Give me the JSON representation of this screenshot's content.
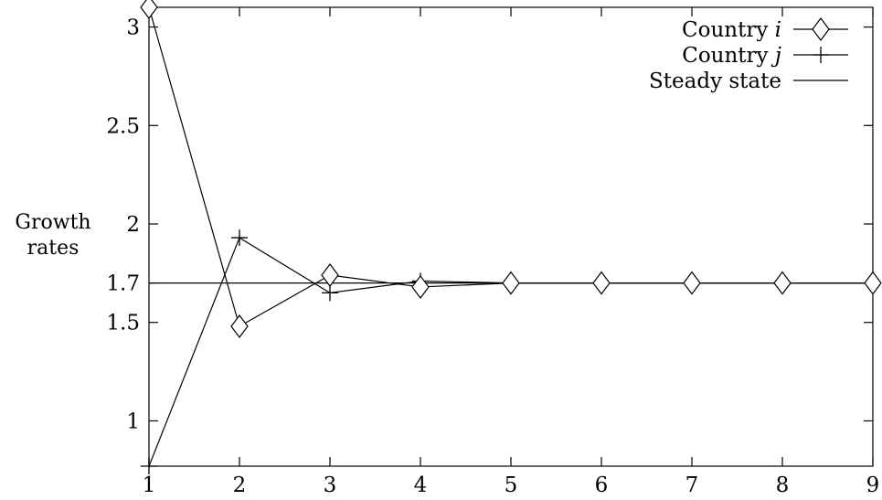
{
  "chart_data": {
    "type": "line",
    "xlabel": "",
    "ylabel_lines": [
      "Growth",
      "rates"
    ],
    "xlim": [
      1,
      9
    ],
    "ylim": [
      0.77,
      3.1
    ],
    "xticks": [
      1,
      2,
      3,
      4,
      5,
      6,
      7,
      8,
      9
    ],
    "yticks": [
      1,
      1.5,
      1.7,
      2,
      2.5,
      3
    ],
    "ytick_labels": [
      "1",
      "1.5",
      "1.7",
      "2",
      "2.5",
      "3"
    ],
    "grid": false,
    "legend_position": "top-right",
    "steady_state": 1.7,
    "series": [
      {
        "name_prefix": "Country ",
        "name_italic": "i",
        "marker": "diamond",
        "x": [
          1,
          2,
          3,
          4,
          5,
          6,
          7,
          8,
          9
        ],
        "values": [
          3.1,
          1.48,
          1.74,
          1.68,
          1.7,
          1.7,
          1.7,
          1.7,
          1.7
        ]
      },
      {
        "name_prefix": "Country ",
        "name_italic": "j",
        "marker": "plus",
        "x": [
          1,
          2,
          3,
          4,
          5,
          6,
          7,
          8,
          9
        ],
        "values": [
          0.77,
          1.93,
          1.65,
          1.71,
          1.7,
          1.7,
          1.7,
          1.7,
          1.7
        ]
      },
      {
        "name_prefix": "Steady state",
        "name_italic": "",
        "marker": "none",
        "x": [
          1,
          9
        ],
        "values": [
          1.7,
          1.7
        ]
      }
    ]
  }
}
